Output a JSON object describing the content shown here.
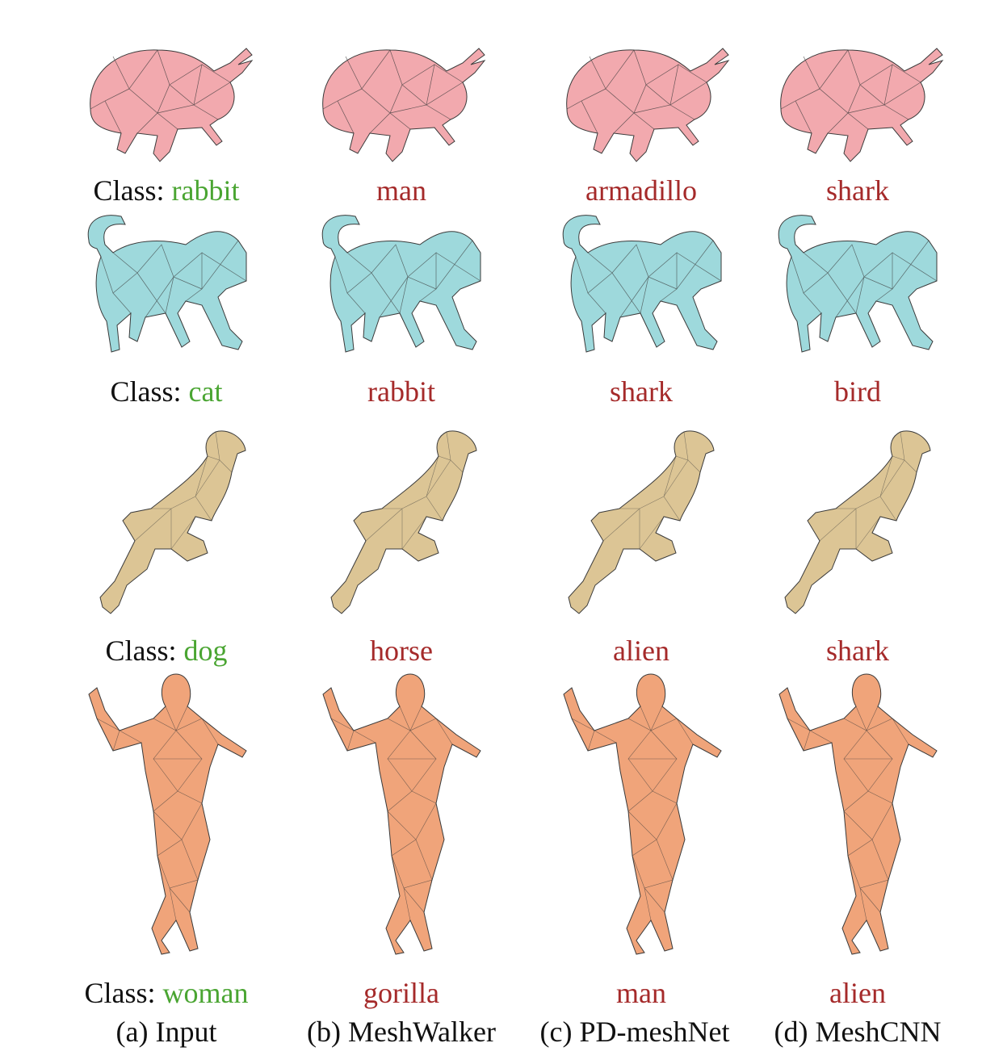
{
  "class_prefix": "Class:",
  "colors": {
    "correct": "#4aa532",
    "wrong": "#a52a2a",
    "rabbit_mesh": "#f2a9ae",
    "cat_mesh": "#9ed9dc",
    "dog_mesh": "#dcc595",
    "woman_mesh": "#f0a47a",
    "wire": "#3a3a3a"
  },
  "rows": [
    {
      "icon": "rabbit-mesh-icon",
      "input_class": "rabbit",
      "predictions": [
        "man",
        "armadillo",
        "shark"
      ]
    },
    {
      "icon": "cat-mesh-icon",
      "input_class": "cat",
      "predictions": [
        "rabbit",
        "shark",
        "bird"
      ]
    },
    {
      "icon": "dog-mesh-icon",
      "input_class": "dog",
      "predictions": [
        "horse",
        "alien",
        "shark"
      ]
    },
    {
      "icon": "woman-mesh-icon",
      "input_class": "woman",
      "predictions": [
        "gorilla",
        "man",
        "alien"
      ]
    }
  ],
  "columns": [
    "(a) Input",
    "(b) MeshWalker",
    "(c) PD-meshNet",
    "(d) MeshCNN"
  ]
}
